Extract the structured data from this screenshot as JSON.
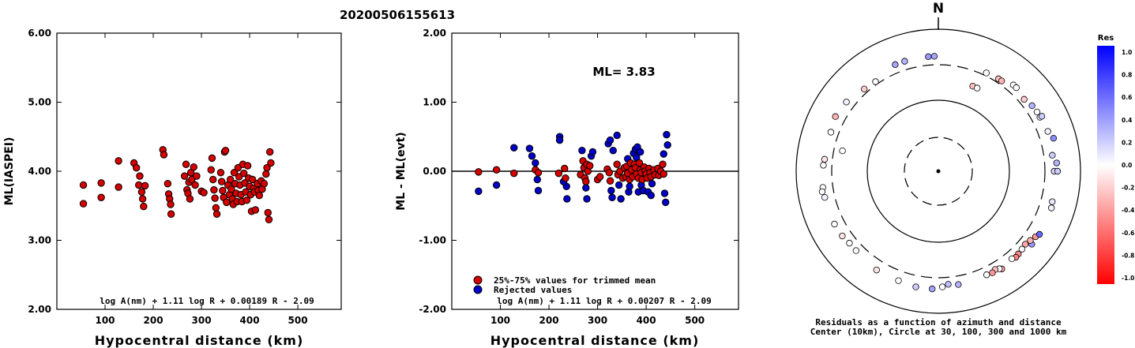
{
  "header": {
    "event_id": "20200506155613"
  },
  "chart_data": [
    {
      "type": "scatter",
      "xlabel": "Hypocentral distance (km)",
      "ylabel": "ML(IASPEI)",
      "xlim": [
        0,
        590
      ],
      "ylim": [
        2.0,
        6.0
      ],
      "x_ticks": [
        "100",
        "200",
        "300",
        "400",
        "500"
      ],
      "y_ticks": [
        "2.00",
        "3.00",
        "4.00",
        "5.00",
        "6.00"
      ],
      "formula": "log A(nm) + 1.11 log R + 0.00189 R - 2.09",
      "colors": {
        "point": "#d40000"
      },
      "points": [
        [
          55,
          3.8
        ],
        [
          55,
          3.53
        ],
        [
          92,
          3.83
        ],
        [
          92,
          3.62
        ],
        [
          128,
          4.15
        ],
        [
          128,
          3.77
        ],
        [
          160,
          4.12
        ],
        [
          165,
          4.05
        ],
        [
          170,
          3.8
        ],
        [
          172,
          3.93
        ],
        [
          176,
          3.7
        ],
        [
          178,
          3.6
        ],
        [
          180,
          3.49
        ],
        [
          183,
          3.79
        ],
        [
          220,
          4.31
        ],
        [
          222,
          4.24
        ],
        [
          230,
          3.82
        ],
        [
          232,
          3.67
        ],
        [
          234,
          3.6
        ],
        [
          236,
          3.52
        ],
        [
          237,
          3.38
        ],
        [
          265,
          3.93
        ],
        [
          268,
          4.1
        ],
        [
          270,
          3.73
        ],
        [
          272,
          3.68
        ],
        [
          274,
          3.84
        ],
        [
          276,
          3.6
        ],
        [
          278,
          3.98
        ],
        [
          280,
          3.88
        ],
        [
          284,
          4.06
        ],
        [
          287,
          3.8
        ],
        [
          290,
          3.93
        ],
        [
          300,
          3.71
        ],
        [
          305,
          3.69
        ],
        [
          320,
          4.02
        ],
        [
          322,
          4.19
        ],
        [
          324,
          3.88
        ],
        [
          326,
          3.73
        ],
        [
          328,
          3.61
        ],
        [
          330,
          3.47
        ],
        [
          332,
          3.38
        ],
        [
          340,
          3.98
        ],
        [
          342,
          3.85
        ],
        [
          344,
          3.72
        ],
        [
          346,
          3.62
        ],
        [
          348,
          4.28
        ],
        [
          350,
          4.3
        ],
        [
          352,
          3.55
        ],
        [
          355,
          3.8
        ],
        [
          358,
          3.66
        ],
        [
          360,
          3.88
        ],
        [
          362,
          3.74
        ],
        [
          364,
          3.6
        ],
        [
          366,
          3.52
        ],
        [
          368,
          3.98
        ],
        [
          370,
          3.82
        ],
        [
          372,
          3.68
        ],
        [
          374,
          3.56
        ],
        [
          376,
          4.05
        ],
        [
          378,
          3.92
        ],
        [
          380,
          3.8
        ],
        [
          382,
          3.66
        ],
        [
          384,
          3.56
        ],
        [
          386,
          4.1
        ],
        [
          388,
          3.97
        ],
        [
          390,
          3.83
        ],
        [
          392,
          3.7
        ],
        [
          394,
          3.58
        ],
        [
          396,
          4.08
        ],
        [
          398,
          3.9
        ],
        [
          400,
          3.78
        ],
        [
          402,
          3.66
        ],
        [
          404,
          3.42
        ],
        [
          406,
          3.88
        ],
        [
          408,
          3.75
        ],
        [
          410,
          3.7
        ],
        [
          412,
          3.44
        ],
        [
          416,
          3.82
        ],
        [
          418,
          3.72
        ],
        [
          420,
          3.65
        ],
        [
          424,
          3.86
        ],
        [
          426,
          3.74
        ],
        [
          430,
          3.82
        ],
        [
          434,
          3.96
        ],
        [
          436,
          4.05
        ],
        [
          438,
          3.4
        ],
        [
          440,
          3.3
        ],
        [
          442,
          4.28
        ],
        [
          444,
          4.12
        ]
      ]
    },
    {
      "type": "scatter",
      "xlabel": "Hypocentral distance (km)",
      "ylabel": "ML - ML(evt)",
      "xlim": [
        0,
        590
      ],
      "ylim": [
        -2.0,
        2.0
      ],
      "x_ticks": [
        "100",
        "200",
        "300",
        "400",
        "500"
      ],
      "y_ticks": [
        "-2.00",
        "-1.00",
        "0.00",
        "1.00",
        "2.00"
      ],
      "annotation": "ML= 3.83",
      "formula": "log A(nm) + 1.11 log R + 0.00207 R - 2.09",
      "legend": [
        {
          "label": "25%-75% values for trimmed mean",
          "color": "#d40000"
        },
        {
          "label": "Rejected values",
          "color": "#0000c8"
        }
      ],
      "points_trimmed": [
        [
          55,
          -0.01
        ],
        [
          92,
          0.02
        ],
        [
          128,
          -0.03
        ],
        [
          172,
          0.02
        ],
        [
          178,
          -0.02
        ],
        [
          220,
          -0.03
        ],
        [
          232,
          0.04
        ],
        [
          234,
          -0.1
        ],
        [
          265,
          -0.05
        ],
        [
          270,
          0.15
        ],
        [
          272,
          0.05
        ],
        [
          274,
          -0.1
        ],
        [
          276,
          -0.15
        ],
        [
          278,
          0.1
        ],
        [
          280,
          0.0
        ],
        [
          284,
          0.08
        ],
        [
          300,
          -0.12
        ],
        [
          305,
          -0.08
        ],
        [
          320,
          0.03
        ],
        [
          324,
          -0.02
        ],
        [
          326,
          -0.14
        ],
        [
          340,
          0.1
        ],
        [
          342,
          -0.05
        ],
        [
          346,
          0.0
        ],
        [
          352,
          -0.1
        ],
        [
          355,
          0.05
        ],
        [
          358,
          -0.08
        ],
        [
          360,
          0.07
        ],
        [
          362,
          -0.03
        ],
        [
          366,
          -0.12
        ],
        [
          368,
          0.12
        ],
        [
          370,
          0.02
        ],
        [
          372,
          -0.08
        ],
        [
          376,
          0.1
        ],
        [
          378,
          0.05
        ],
        [
          380,
          -0.04
        ],
        [
          384,
          -0.1
        ],
        [
          386,
          0.12
        ],
        [
          388,
          0.02
        ],
        [
          390,
          -0.02
        ],
        [
          392,
          -0.12
        ],
        [
          396,
          0.06
        ],
        [
          398,
          0.0
        ],
        [
          400,
          -0.04
        ],
        [
          402,
          -0.1
        ],
        [
          406,
          0.04
        ],
        [
          408,
          -0.02
        ],
        [
          410,
          -0.08
        ],
        [
          416,
          0.02
        ],
        [
          418,
          -0.05
        ],
        [
          424,
          0.04
        ],
        [
          426,
          -0.06
        ],
        [
          430,
          0.0
        ],
        [
          434,
          0.1
        ],
        [
          436,
          -0.04
        ]
      ],
      "points_rejected": [
        [
          55,
          -0.29
        ],
        [
          92,
          -0.2
        ],
        [
          128,
          0.34
        ],
        [
          160,
          0.33
        ],
        [
          165,
          0.22
        ],
        [
          172,
          0.12
        ],
        [
          176,
          -0.12
        ],
        [
          178,
          -0.28
        ],
        [
          222,
          0.5
        ],
        [
          222,
          0.45
        ],
        [
          236,
          -0.22
        ],
        [
          237,
          -0.4
        ],
        [
          230,
          -0.15
        ],
        [
          268,
          0.3
        ],
        [
          276,
          -0.24
        ],
        [
          278,
          -0.4
        ],
        [
          287,
          0.22
        ],
        [
          290,
          0.28
        ],
        [
          322,
          0.4
        ],
        [
          326,
          0.45
        ],
        [
          328,
          -0.28
        ],
        [
          330,
          -0.38
        ],
        [
          332,
          0.3
        ],
        [
          340,
          0.52
        ],
        [
          344,
          -0.2
        ],
        [
          348,
          -0.4
        ],
        [
          362,
          0.18
        ],
        [
          364,
          -0.3
        ],
        [
          366,
          -0.22
        ],
        [
          374,
          0.26
        ],
        [
          378,
          0.32
        ],
        [
          380,
          0.2
        ],
        [
          382,
          0.35
        ],
        [
          384,
          -0.3
        ],
        [
          388,
          0.28
        ],
        [
          390,
          -0.2
        ],
        [
          394,
          -0.28
        ],
        [
          404,
          -0.3
        ],
        [
          410,
          -0.35
        ],
        [
          412,
          -0.18
        ],
        [
          438,
          -0.32
        ],
        [
          440,
          -0.45
        ],
        [
          442,
          0.53
        ],
        [
          444,
          0.38
        ],
        [
          436,
          0.25
        ]
      ]
    },
    {
      "type": "polar-scatter",
      "north_label": "N",
      "colorbar_title": "Res",
      "colorbar_ticks": [
        "1.0",
        "0.8",
        "0.6",
        "0.4",
        "0.2",
        "0.0",
        "-0.2",
        "-0.4",
        "-0.6",
        "-0.8",
        "-1.0"
      ],
      "caption_line1": "Residuals as a function of azimuth and distance",
      "caption_line2": "Center (10km), Circle at 30, 100, 300 and 1000 km",
      "colors": {
        "positive": "#0000ff",
        "negative": "#ff0000",
        "zero": "#ffffff"
      },
      "stations": [
        {
          "az": 338,
          "dist": 400,
          "res": 0.35
        },
        {
          "az": 343,
          "dist": 400,
          "res": 0.3
        },
        {
          "az": 355,
          "dist": 400,
          "res": 0.4
        },
        {
          "az": 358,
          "dist": 400,
          "res": 0.35
        },
        {
          "az": 26,
          "dist": 330,
          "res": 0.0
        },
        {
          "az": 33,
          "dist": 340,
          "res": -0.25
        },
        {
          "az": 35,
          "dist": 340,
          "res": -0.3
        },
        {
          "az": 41,
          "dist": 390,
          "res": 0.0
        },
        {
          "az": 43,
          "dist": 390,
          "res": 0.0
        },
        {
          "az": 50,
          "dist": 360,
          "res": -0.2
        },
        {
          "az": 55,
          "dist": 390,
          "res": 0.3
        },
        {
          "az": 59,
          "dist": 400,
          "res": 0.0
        },
        {
          "az": 62,
          "dist": 400,
          "res": 0.1
        },
        {
          "az": 62,
          "dist": 430,
          "res": 0.2
        },
        {
          "az": 70,
          "dist": 420,
          "res": 0.05
        },
        {
          "az": 74,
          "dist": 470,
          "res": 0.45
        },
        {
          "az": 82,
          "dist": 400,
          "res": 0.2
        },
        {
          "az": 86,
          "dist": 450,
          "res": 0.3
        },
        {
          "az": 90,
          "dist": 410,
          "res": 0.15
        },
        {
          "az": 90,
          "dist": 460,
          "res": 0.2
        },
        {
          "az": 105,
          "dist": 440,
          "res": 0.1
        },
        {
          "az": 108,
          "dist": 455,
          "res": 0.05
        },
        {
          "az": 124,
          "dist": 430,
          "res": -0.4
        },
        {
          "az": 122,
          "dist": 460,
          "res": 0.6
        },
        {
          "az": 128,
          "dist": 450,
          "res": 0.4
        },
        {
          "az": 127,
          "dist": 400,
          "res": -0.3
        },
        {
          "az": 130,
          "dist": 380,
          "res": -0.35
        },
        {
          "az": 133,
          "dist": 390,
          "res": 0.0
        },
        {
          "az": 136,
          "dist": 400,
          "res": -0.45
        },
        {
          "az": 138,
          "dist": 410,
          "res": -0.5
        },
        {
          "az": 140,
          "dist": 390,
          "res": 0.0
        },
        {
          "az": 147,
          "dist": 420,
          "res": -0.35
        },
        {
          "az": 148,
          "dist": 400,
          "res": 0.0
        },
        {
          "az": 150,
          "dist": 380,
          "res": -0.25
        },
        {
          "az": 152,
          "dist": 400,
          "res": -0.4
        },
        {
          "az": 155,
          "dist": 390,
          "res": 0.0
        },
        {
          "az": 170,
          "dist": 400,
          "res": 0.3
        },
        {
          "az": 175,
          "dist": 380,
          "res": 0.25
        },
        {
          "az": 178,
          "dist": 410,
          "res": 0.0
        },
        {
          "az": 183,
          "dist": 440,
          "res": 0.35
        },
        {
          "az": 191,
          "dist": 440,
          "res": 0.2
        },
        {
          "az": 200,
          "dist": 420,
          "res": 0.0
        },
        {
          "az": 212,
          "dist": 420,
          "res": -0.1
        },
        {
          "az": 226,
          "dist": 390,
          "res": 0.0
        },
        {
          "az": 231,
          "dist": 390,
          "res": 0.0
        },
        {
          "az": 236,
          "dist": 410,
          "res": -0.1
        },
        {
          "az": 243,
          "dist": 420,
          "res": 0.0
        },
        {
          "az": 257,
          "dist": 420,
          "res": 0.05
        },
        {
          "az": 262,
          "dist": 420,
          "res": 0.0
        },
        {
          "az": 260,
          "dist": 440,
          "res": 0.0
        },
        {
          "az": 273,
          "dist": 400,
          "res": 0.0
        },
        {
          "az": 276,
          "dist": 390,
          "res": -0.1
        },
        {
          "az": 290,
          "dist": 390,
          "res": 0.0
        },
        {
          "az": 298,
          "dist": 420,
          "res": -0.3
        },
        {
          "az": 307,
          "dist": 400,
          "res": 0.05
        },
        {
          "az": 318,
          "dist": 345,
          "res": -0.2
        },
        {
          "az": 325,
          "dist": 330,
          "res": 0.0
        },
        {
          "az": 282,
          "dist": 230,
          "res": 0.0
        },
        {
          "az": 22,
          "dist": 190,
          "res": -0.25
        },
        {
          "az": 25,
          "dist": 190,
          "res": 0.0
        }
      ]
    }
  ]
}
